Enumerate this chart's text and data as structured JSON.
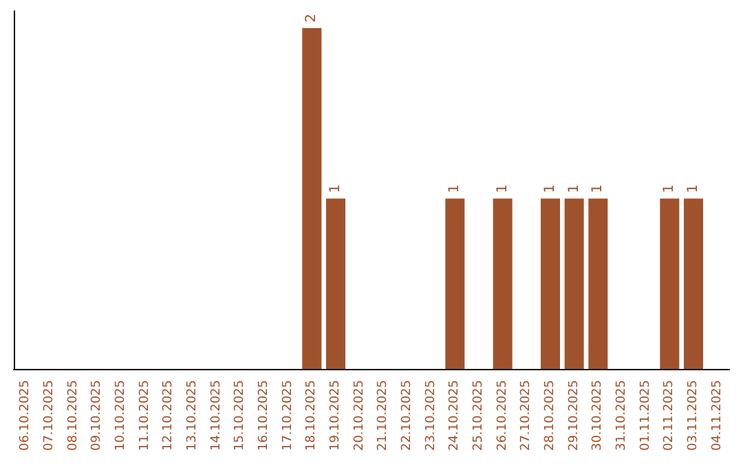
{
  "chart_data": {
    "type": "bar",
    "categories": [
      "06.10.2025",
      "07.10.2025",
      "08.10.2025",
      "09.10.2025",
      "10.10.2025",
      "11.10.2025",
      "12.10.2025",
      "13.10.2025",
      "14.10.2025",
      "15.10.2025",
      "16.10.2025",
      "17.10.2025",
      "18.10.2025",
      "19.10.2025",
      "20.10.2025",
      "21.10.2025",
      "22.10.2025",
      "23.10.2025",
      "24.10.2025",
      "25.10.2025",
      "26.10.2025",
      "27.10.2025",
      "28.10.2025",
      "29.10.2025",
      "30.10.2025",
      "31.10.2025",
      "01.11.2025",
      "02.11.2025",
      "03.11.2025",
      "04.11.2025"
    ],
    "values": [
      null,
      null,
      null,
      null,
      null,
      null,
      null,
      null,
      null,
      null,
      null,
      null,
      2,
      1,
      null,
      null,
      null,
      null,
      1,
      null,
      1,
      null,
      1,
      1,
      1,
      null,
      null,
      1,
      1,
      null
    ],
    "data_labels": true,
    "color": "#a0522d",
    "tick_labels": "x",
    "grid": false
  }
}
